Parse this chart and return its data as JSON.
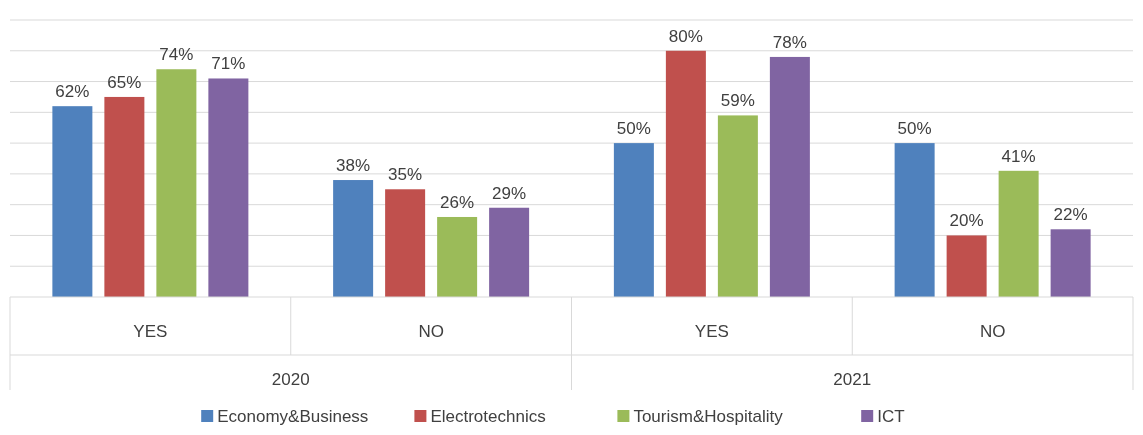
{
  "chart_data": {
    "type": "bar",
    "categories": [
      "YES",
      "NO",
      "YES",
      "NO"
    ],
    "series": [
      {
        "name": "Economy&Business",
        "color": "#4f81bd",
        "values": [
          62,
          38,
          50,
          50
        ],
        "value_labels": [
          "62%",
          "38%",
          "50%",
          "50%"
        ]
      },
      {
        "name": "Electrotechnics",
        "color": "#c0504d",
        "values": [
          65,
          35,
          80,
          20
        ],
        "value_labels": [
          "65%",
          "35%",
          "80%",
          "20%"
        ]
      },
      {
        "name": "Tourism&Hospitality",
        "color": "#9bbb59",
        "values": [
          74,
          26,
          59,
          41
        ],
        "value_labels": [
          "74%",
          "26%",
          "59%",
          "41%"
        ]
      },
      {
        "name": "ICT",
        "color": "#8064a2",
        "values": [
          71,
          29,
          78,
          22
        ],
        "value_labels": [
          "71%",
          "29%",
          "78%",
          "22%"
        ]
      }
    ],
    "annotations": [
      "2020",
      "2021"
    ],
    "ylim": [
      0,
      90
    ],
    "yticks": [
      {
        "value": 10,
        "label": null
      },
      {
        "value": 20,
        "label": null
      },
      {
        "value": 30,
        "label": null
      },
      {
        "value": 40,
        "label": null
      },
      {
        "value": 50,
        "label": null
      },
      {
        "value": 60,
        "label": null
      },
      {
        "value": 70,
        "label": null
      },
      {
        "value": 80,
        "label": null
      },
      {
        "value": 90,
        "label": null
      }
    ],
    "tick_labels": "x",
    "grid": "y",
    "legend": "bottom"
  }
}
